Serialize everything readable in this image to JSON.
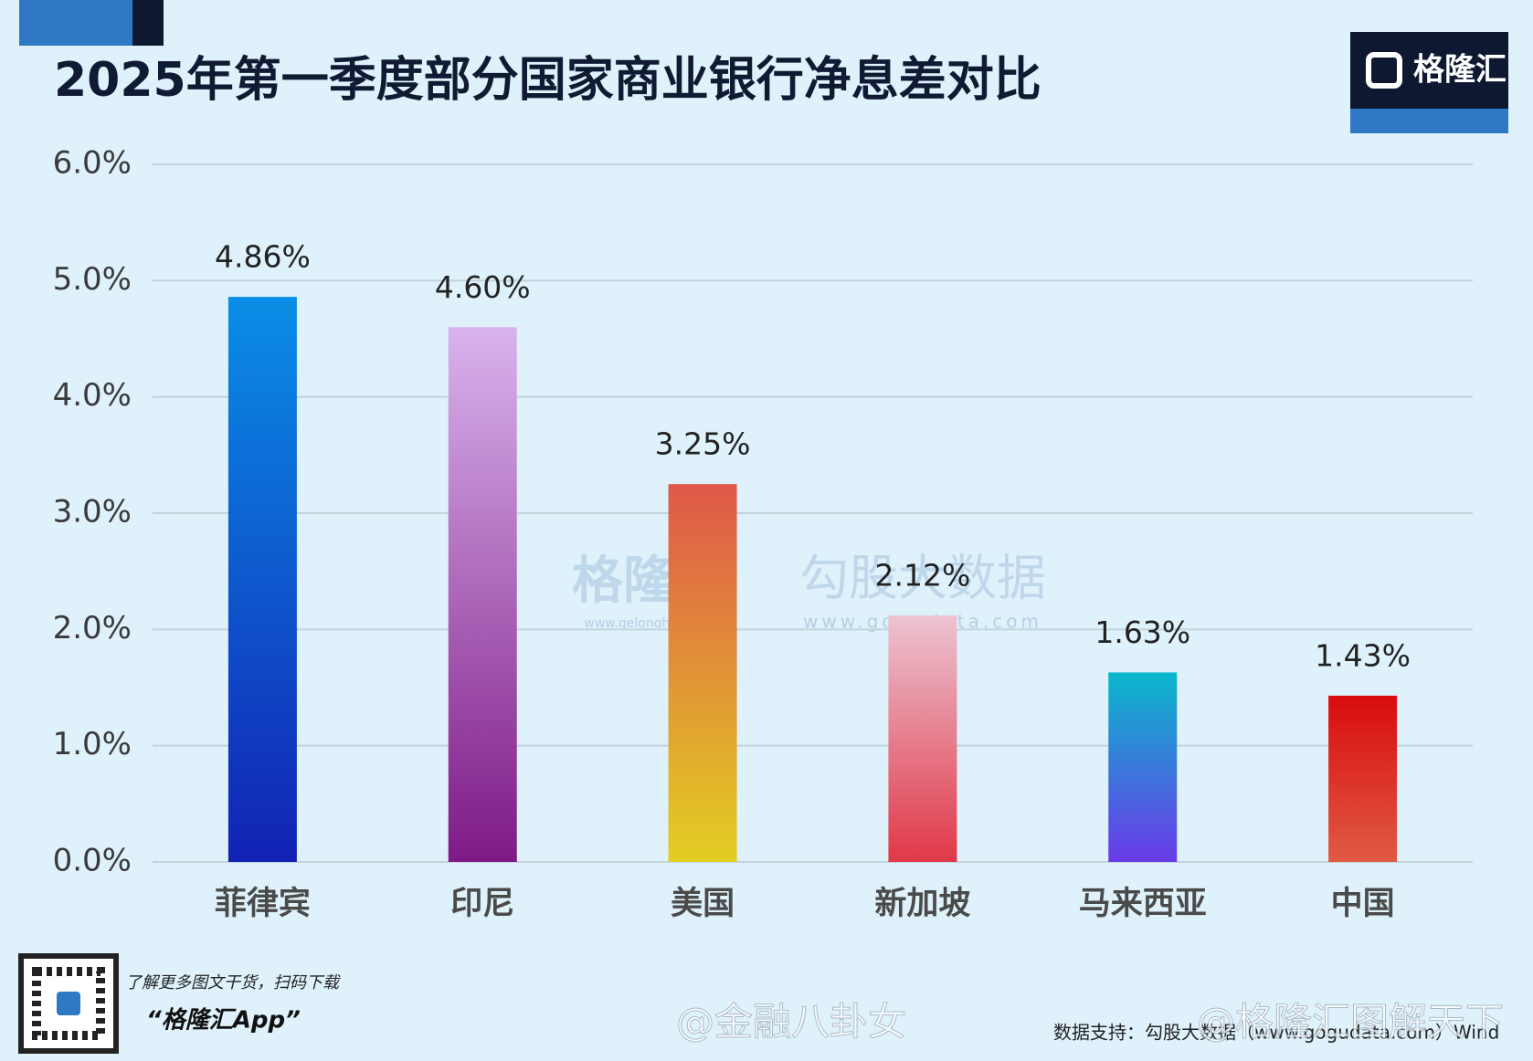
{
  "chart_data": {
    "type": "bar",
    "title": "2025年第一季度部分国家商业银行净息差对比",
    "categories": [
      "菲律宾",
      "印尼",
      "美国",
      "新加坡",
      "马来西亚",
      "中国"
    ],
    "values": [
      4.86,
      4.6,
      3.25,
      2.12,
      1.63,
      1.43
    ],
    "value_labels": [
      "4.86%",
      "4.60%",
      "3.25%",
      "2.12%",
      "1.63%",
      "1.43%"
    ],
    "colors": [
      [
        "#0a8ee6",
        "#1222b4"
      ],
      [
        "#d9b3ec",
        "#7e1a86"
      ],
      [
        "#e0584a",
        "#e2ce22"
      ],
      [
        "#ecc4d2",
        "#e03848"
      ],
      [
        "#0ab8cc",
        "#6a3ae8"
      ],
      [
        "#d80c0c",
        "#e05a44"
      ]
    ],
    "ylim": [
      0,
      6
    ],
    "yticks": [
      {
        "value": 0,
        "label": "0.0%"
      },
      {
        "value": 1,
        "label": "1.0%"
      },
      {
        "value": 2,
        "label": "2.0%"
      },
      {
        "value": 3,
        "label": "3.0%"
      },
      {
        "value": 4,
        "label": "4.0%"
      },
      {
        "value": 5,
        "label": "5.0%"
      },
      {
        "value": 6,
        "label": "6.0%"
      }
    ],
    "grid": true,
    "logo": "格隆汇",
    "footer_note": "了解更多图文干货，扫码下载",
    "footer_app": "“格隆汇App”",
    "source": "数据支持：勾股大数据（www.gogudata.com）Wind",
    "watermarks": [
      "格隆汇",
      "www.gelonghui.com",
      "勾股大数据",
      "www.gogudata.com",
      "@金融八卦女",
      "@格隆汇图解天下"
    ]
  }
}
